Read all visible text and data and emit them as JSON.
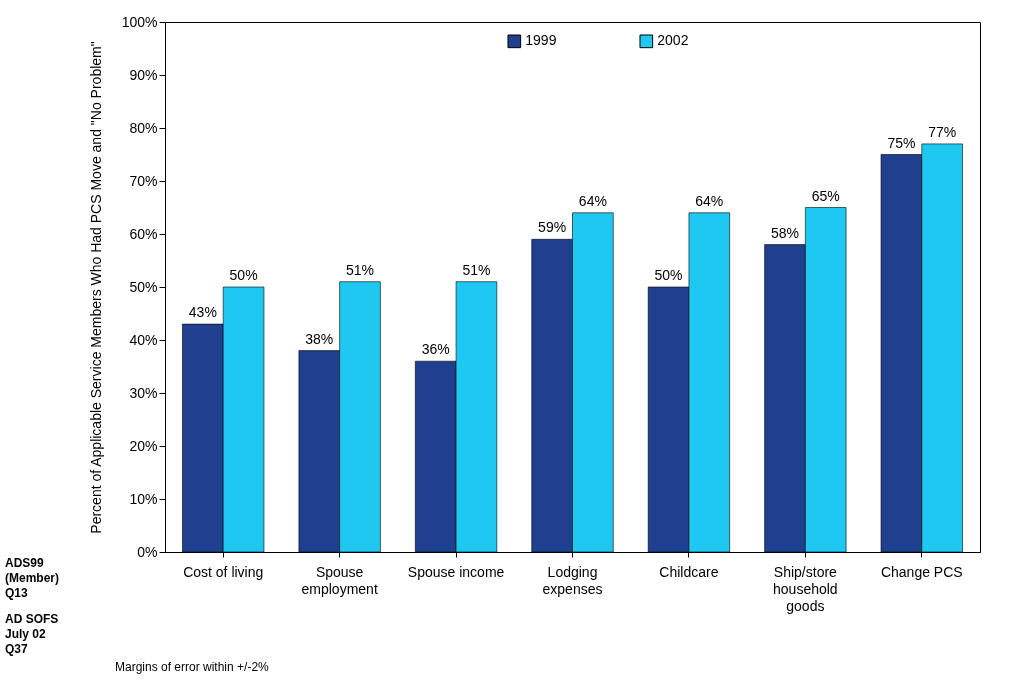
{
  "chart_data": {
    "type": "bar",
    "ylabel": "Percent of Applicable Service Members Who Had PCS Move and \"No Problem\"",
    "categories": [
      "Cost of living",
      "Spouse employment",
      "Spouse income",
      "Lodging expenses",
      "Childcare",
      "Ship/store household goods",
      "Change PCS"
    ],
    "series": [
      {
        "name": "1999",
        "color": "#1f3f8f",
        "values": [
          43,
          38,
          36,
          59,
          50,
          58,
          75
        ],
        "value_labels": [
          "43%",
          "38%",
          "36%",
          "59%",
          "50%",
          "58%",
          "75%"
        ]
      },
      {
        "name": "2002",
        "color": "#1ec8f0",
        "values": [
          50,
          51,
          51,
          64,
          64,
          65,
          77
        ],
        "value_labels": [
          "50%",
          "51%",
          "51%",
          "64%",
          "64%",
          "65%",
          "77%"
        ]
      }
    ],
    "ylim": [
      0,
      100
    ],
    "yticks": [
      {
        "value": 0,
        "label": "0%"
      },
      {
        "value": 10,
        "label": "10%"
      },
      {
        "value": 20,
        "label": "20%"
      },
      {
        "value": 30,
        "label": "30%"
      },
      {
        "value": 40,
        "label": "40%"
      },
      {
        "value": 50,
        "label": "50%"
      },
      {
        "value": 60,
        "label": "60%"
      },
      {
        "value": 70,
        "label": "70%"
      },
      {
        "value": 80,
        "label": "80%"
      },
      {
        "value": 90,
        "label": "90%"
      },
      {
        "value": 100,
        "label": "100%"
      }
    ],
    "legend": "top",
    "grid": false,
    "annotations": [
      "ADS99 (Member) Q13",
      "AD SOFS July 02 Q37",
      "Margins of error within +/-2%"
    ]
  }
}
